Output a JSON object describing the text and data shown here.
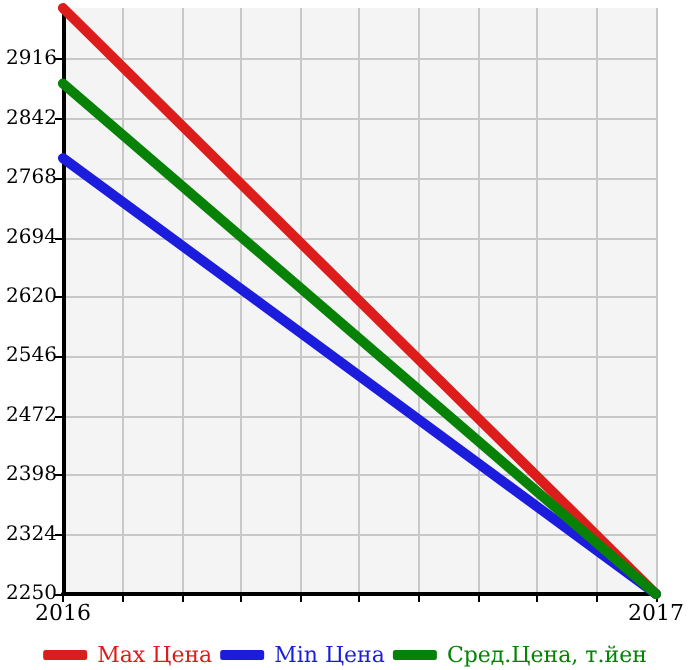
{
  "chart_data": {
    "type": "line",
    "x": [
      2016,
      2017
    ],
    "xlim": [
      2016,
      2017
    ],
    "xticks": [
      2016,
      {
        "value": 2016.1,
        "label": null
      },
      {
        "value": 2016.2,
        "label": null
      },
      {
        "value": 2016.3,
        "label": null
      },
      {
        "value": 2016.4,
        "label": null
      },
      {
        "value": 2016.5,
        "label": null
      },
      {
        "value": 2016.6,
        "label": null
      },
      {
        "value": 2016.7,
        "label": null
      },
      {
        "value": 2016.8,
        "label": null
      },
      {
        "value": 2016.9,
        "label": null
      },
      2017
    ],
    "ylim": [
      2250,
      2980
    ],
    "yticks": [
      2250,
      2324,
      2398,
      2472,
      2546,
      2620,
      2694,
      2768,
      2842,
      2916
    ],
    "grid": true,
    "legend": "bottom",
    "marker": "none",
    "line_style": "solid",
    "series": [
      {
        "name": "Max Цена",
        "color": "#dd1c1c",
        "values": [
          2980,
          2250
        ]
      },
      {
        "name": "Min Цена",
        "color": "#1c1cdd",
        "values": [
          2793,
          2250
        ]
      },
      {
        "name": "Сред.Цена, т.йен",
        "color": "#078207",
        "values": [
          2886,
          2250
        ]
      }
    ]
  }
}
